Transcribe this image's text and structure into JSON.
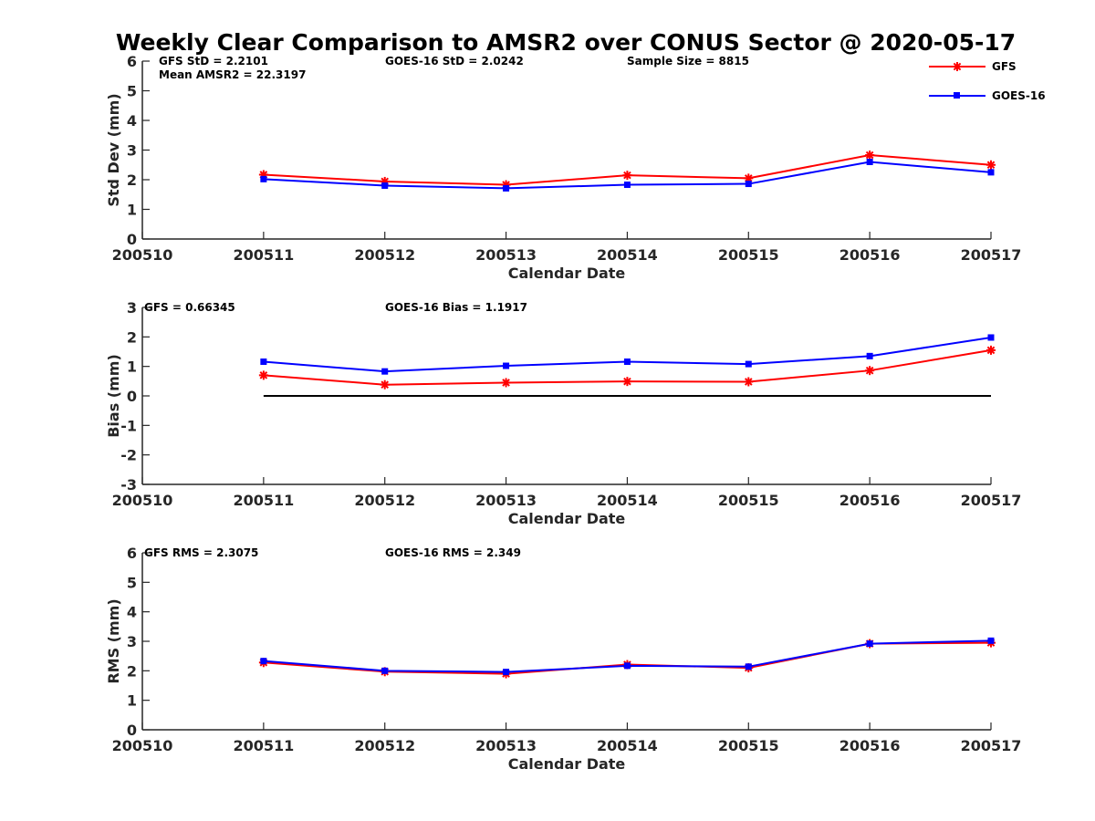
{
  "title": "Weekly Clear Comparison to AMSR2 over CONUS Sector @ 2020-05-17",
  "legend": {
    "placement": "top-right",
    "entries": [
      {
        "name": "GFS",
        "color": "#ff0000",
        "marker": "asterisk"
      },
      {
        "name": "GOES-16",
        "color": "#0000ff",
        "marker": "square"
      }
    ]
  },
  "chart_data": [
    {
      "type": "line",
      "title": "",
      "xlabel": "Calendar Date",
      "ylabel": "Std Dev (mm)",
      "x_ticks": [
        "200510",
        "200511",
        "200512",
        "200513",
        "200514",
        "200515",
        "200516",
        "200517"
      ],
      "xlim": [
        200510,
        200517
      ],
      "ylim": [
        0,
        6
      ],
      "y_ticks": [
        "0",
        "1",
        "2",
        "3",
        "4",
        "5",
        "6"
      ],
      "annotations": [
        "GFS StD = 2.2101",
        "GOES-16 StD = 2.0242",
        "Sample Size = 8815",
        "Mean AMSR2 = 22.3197"
      ],
      "x": [
        200511,
        200512,
        200513,
        200514,
        200515,
        200516,
        200517
      ],
      "series": [
        {
          "name": "GFS",
          "color": "#ff0000",
          "values": [
            2.17,
            1.94,
            1.83,
            2.15,
            2.05,
            2.83,
            2.5
          ]
        },
        {
          "name": "GOES-16",
          "color": "#0000ff",
          "values": [
            2.02,
            1.8,
            1.71,
            1.83,
            1.86,
            2.6,
            2.25
          ]
        }
      ]
    },
    {
      "type": "line",
      "title": "",
      "xlabel": "Calendar Date",
      "ylabel": "Bias (mm)",
      "x_ticks": [
        "200510",
        "200511",
        "200512",
        "200513",
        "200514",
        "200515",
        "200516",
        "200517"
      ],
      "xlim": [
        200510,
        200517
      ],
      "ylim": [
        -3,
        3
      ],
      "y_ticks": [
        "-3",
        "-2",
        "-1",
        "0",
        "1",
        "2",
        "3"
      ],
      "annotations": [
        "GFS = 0.66345",
        "GOES-16 Bias  = 1.1917"
      ],
      "zero_line": true,
      "x": [
        200511,
        200512,
        200513,
        200514,
        200515,
        200516,
        200517
      ],
      "series": [
        {
          "name": "GFS",
          "color": "#ff0000",
          "values": [
            0.7,
            0.38,
            0.45,
            0.49,
            0.48,
            0.86,
            1.55
          ]
        },
        {
          "name": "GOES-16",
          "color": "#0000ff",
          "values": [
            1.16,
            0.83,
            1.02,
            1.16,
            1.08,
            1.35,
            1.98
          ]
        }
      ]
    },
    {
      "type": "line",
      "title": "",
      "xlabel": "Calendar Date",
      "ylabel": "RMS (mm)",
      "x_ticks": [
        "200510",
        "200511",
        "200512",
        "200513",
        "200514",
        "200515",
        "200516",
        "200517"
      ],
      "xlim": [
        200510,
        200517
      ],
      "ylim": [
        0,
        6
      ],
      "y_ticks": [
        "0",
        "1",
        "2",
        "3",
        "4",
        "5",
        "6"
      ],
      "annotations": [
        "GFS RMS = 2.3075",
        "GOES-16 RMS = 2.349"
      ],
      "x": [
        200511,
        200512,
        200513,
        200514,
        200515,
        200516,
        200517
      ],
      "series": [
        {
          "name": "GFS",
          "color": "#ff0000",
          "values": [
            2.28,
            1.97,
            1.9,
            2.21,
            2.1,
            2.92,
            2.95
          ]
        },
        {
          "name": "GOES-16",
          "color": "#0000ff",
          "values": [
            2.33,
            2.0,
            1.96,
            2.17,
            2.14,
            2.92,
            3.02
          ]
        }
      ]
    }
  ]
}
